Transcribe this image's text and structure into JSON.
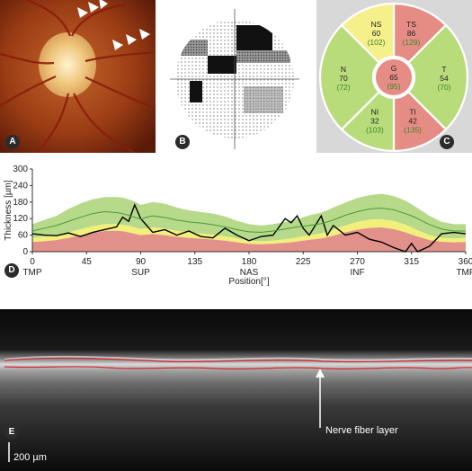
{
  "panels": {
    "a": {
      "label": "A"
    },
    "b": {
      "label": "B"
    },
    "c": {
      "label": "C"
    },
    "d": {
      "label": "D"
    },
    "e": {
      "label": "E"
    }
  },
  "sectors": {
    "NS": {
      "name": "NS",
      "value": "60",
      "normal": "(102)",
      "color": "#f5f08a"
    },
    "TS": {
      "name": "TS",
      "value": "86",
      "normal": "(129)",
      "color": "#e58c84"
    },
    "N": {
      "name": "N",
      "value": "70",
      "normal": "(72)",
      "color": "#b8dc7a"
    },
    "G": {
      "name": "G",
      "value": "65",
      "normal": "(95)",
      "color": "#e58c84"
    },
    "T": {
      "name": "T",
      "value": "54",
      "normal": "(70)",
      "color": "#b8dc7a"
    },
    "NI": {
      "name": "NI",
      "value": "32",
      "normal": "(103)",
      "color": "#b8dc7a"
    },
    "TI": {
      "name": "TI",
      "value": "42",
      "normal": "(135)",
      "color": "#e58c84"
    }
  },
  "chart_data": {
    "type": "line",
    "xlabel": "Position[°]",
    "ylabel": "Thickness [µm]",
    "xlim": [
      0,
      360
    ],
    "ylim": [
      0,
      300
    ],
    "x_ticks": [
      0,
      45,
      90,
      135,
      180,
      225,
      270,
      315,
      360
    ],
    "y_ticks": [
      0,
      60,
      120,
      180,
      240,
      300
    ],
    "region_labels": [
      {
        "x": 0,
        "text": "TMP"
      },
      {
        "x": 90,
        "text": "SUP"
      },
      {
        "x": 180,
        "text": "NAS"
      },
      {
        "x": 270,
        "text": "INF"
      },
      {
        "x": 360,
        "text": "TMP"
      }
    ],
    "x": [
      0,
      10,
      20,
      30,
      40,
      50,
      60,
      70,
      75,
      80,
      85,
      90,
      95,
      100,
      110,
      120,
      130,
      140,
      150,
      160,
      170,
      180,
      190,
      200,
      210,
      215,
      220,
      225,
      230,
      240,
      245,
      250,
      260,
      270,
      280,
      290,
      300,
      310,
      315,
      320,
      330,
      340,
      350,
      360
    ],
    "series": [
      {
        "values": [
          65,
          60,
          58,
          68,
          55,
          70,
          80,
          90,
          125,
          110,
          170,
          120,
          95,
          70,
          80,
          60,
          75,
          55,
          50,
          85,
          60,
          40,
          55,
          60,
          120,
          105,
          130,
          85,
          60,
          130,
          60,
          95,
          60,
          70,
          45,
          35,
          15,
          0,
          30,
          0,
          20,
          65,
          70,
          65
        ]
      },
      {
        "values": [
          75,
          85,
          95,
          110,
          125,
          138,
          145,
          142,
          138,
          132,
          125,
          118,
          125,
          130,
          124,
          115,
          108,
          104,
          98,
          90,
          80,
          72,
          70,
          75,
          82,
          86,
          90,
          92,
          95,
          102,
          108,
          115,
          132,
          145,
          155,
          158,
          152,
          138,
          130,
          120,
          98,
          82,
          75,
          75
        ]
      }
    ],
    "bands": {
      "normal_upper": [
        100,
        115,
        130,
        155,
        175,
        190,
        198,
        198,
        196,
        190,
        182,
        170,
        175,
        180,
        174,
        160,
        150,
        144,
        138,
        128,
        112,
        100,
        95,
        100,
        108,
        112,
        118,
        125,
        132,
        142,
        150,
        160,
        178,
        195,
        205,
        210,
        202,
        185,
        172,
        158,
        130,
        108,
        100,
        100
      ],
      "borderline_upper": [
        50,
        55,
        60,
        70,
        82,
        92,
        100,
        100,
        98,
        94,
        88,
        82,
        85,
        88,
        84,
        76,
        70,
        66,
        62,
        56,
        48,
        40,
        38,
        40,
        45,
        48,
        52,
        56,
        60,
        66,
        72,
        80,
        95,
        108,
        116,
        118,
        112,
        98,
        88,
        78,
        60,
        50,
        48,
        50
      ],
      "low_upper": [
        35,
        38,
        42,
        50,
        60,
        68,
        75,
        76,
        74,
        70,
        65,
        60,
        62,
        64,
        60,
        54,
        50,
        47,
        44,
        40,
        34,
        28,
        27,
        29,
        32,
        34,
        37,
        40,
        43,
        48,
        52,
        58,
        70,
        80,
        86,
        88,
        82,
        70,
        62,
        55,
        42,
        36,
        34,
        35
      ]
    },
    "colors": {
      "normal": "#b6d98a",
      "borderline": "#f2ef7a",
      "low": "#e1908a",
      "series": "#000000",
      "normal_line": "#4a9a3a"
    }
  },
  "oct": {
    "annotation": "Nerve fiber layer",
    "scalebar": "200 µm"
  }
}
